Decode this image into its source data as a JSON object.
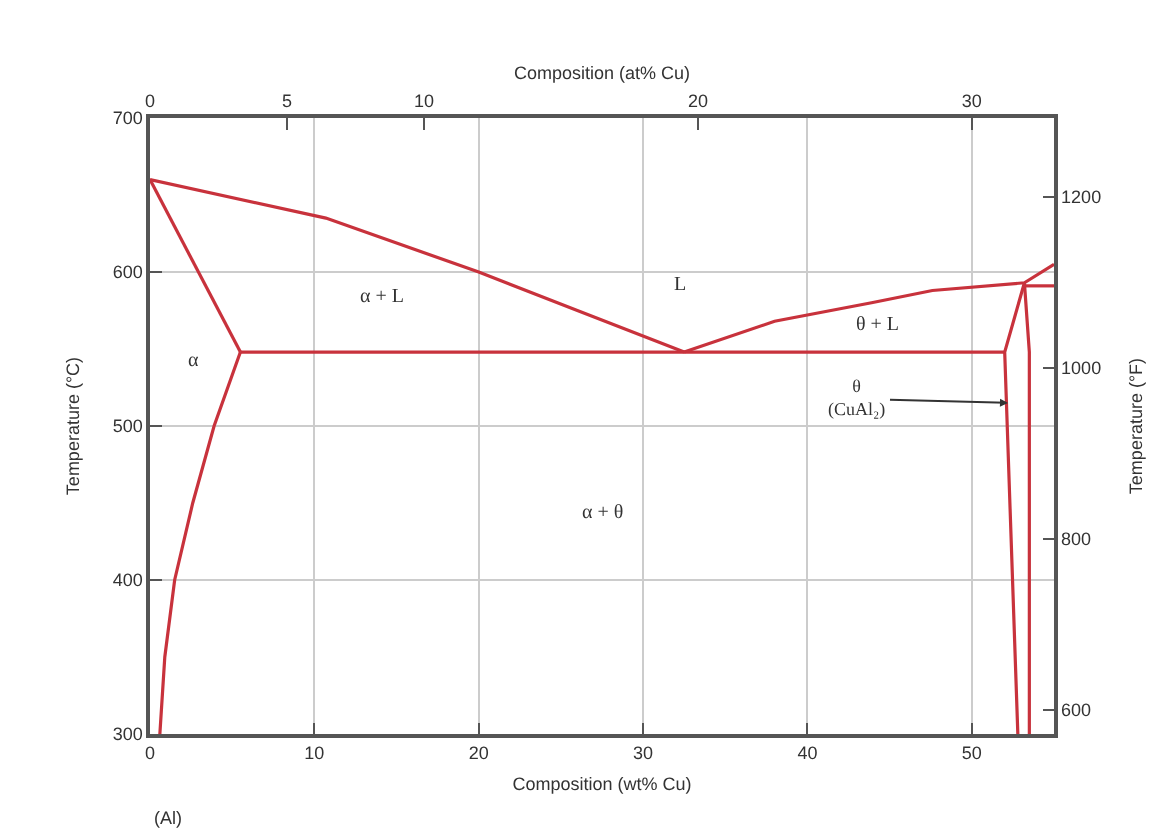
{
  "chart_data": {
    "type": "line",
    "xlabel": "Composition (wt% Cu)",
    "x2label": "Composition (at% Cu)",
    "ylabel": "Temperature (°C)",
    "y2label": "Temperature (°F)",
    "xlim": [
      0,
      55
    ],
    "xticks": [
      0,
      10,
      20,
      30,
      40,
      50
    ],
    "x2lim": [
      0,
      33
    ],
    "x2ticks": [
      0,
      5,
      10,
      20,
      30
    ],
    "ylim": [
      300,
      700
    ],
    "yticks": [
      300,
      400,
      500,
      600,
      700
    ],
    "y2lim": [
      572,
      1292
    ],
    "y2ticks": [
      600,
      800,
      1000,
      1200
    ],
    "grid": true,
    "marker": "none",
    "line_style": "solid",
    "series": [
      {
        "color": "#c8323c",
        "x": [
          0,
          10.7,
          20,
          26,
          32.5
        ],
        "values": [
          660,
          635,
          600,
          575,
          548
        ]
      },
      {
        "color": "#c8323c",
        "x": [
          32.5,
          38,
          43.9,
          47.6,
          53.2,
          55
        ],
        "values": [
          548,
          568,
          580,
          588,
          593,
          605
        ]
      },
      {
        "color": "#c8323c",
        "x": [
          0,
          5.5
        ],
        "values": [
          660,
          548
        ]
      },
      {
        "color": "#c8323c",
        "x": [
          5.5,
          52
        ],
        "values": [
          548,
          548
        ]
      },
      {
        "color": "#c8323c",
        "x": [
          5.5,
          3.9,
          2.6,
          1.5,
          0.9,
          0.6
        ],
        "values": [
          548,
          500,
          450,
          400,
          350,
          300
        ]
      },
      {
        "color": "#c8323c",
        "x": [
          53.2,
          52,
          52.8
        ],
        "values": [
          593,
          548,
          300
        ]
      },
      {
        "color": "#c8323c",
        "x": [
          53.2,
          53.5,
          53.5
        ],
        "values": [
          593,
          548,
          300
        ]
      },
      {
        "color": "#c8323c",
        "x": [
          53.2,
          55
        ],
        "values": [
          591,
          591
        ]
      }
    ],
    "annotations": [
      "(Al)",
      "α + L",
      "L",
      "θ + L",
      "α",
      "α + θ",
      {
        "text": "θ\n(CuAl₂)",
        "x": 52.2,
        "y": 515
      }
    ]
  }
}
